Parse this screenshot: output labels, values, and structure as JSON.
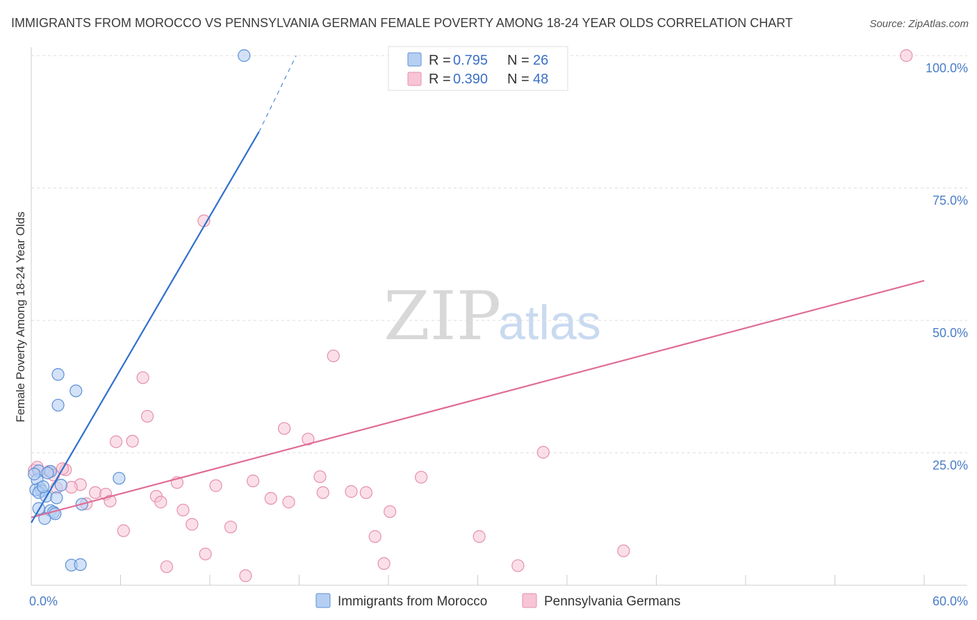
{
  "header": {
    "title": "IMMIGRANTS FROM MOROCCO VS PENNSYLVANIA GERMAN FEMALE POVERTY AMONG 18-24 YEAR OLDS CORRELATION CHART",
    "source": "Source: ZipAtlas.com"
  },
  "watermark": {
    "zip": "ZIP",
    "atlas": "atlas"
  },
  "legend": {
    "r_label": "R =",
    "n_label": "N =",
    "series": [
      {
        "r": "0.795",
        "n": "26"
      },
      {
        "r": "0.390",
        "n": "48"
      }
    ]
  },
  "colors": {
    "blue_fill": "#b5cff2",
    "blue_stroke": "#5b8fd6",
    "blue_line": "#2e6fcc",
    "pink_fill": "#f7c5d5",
    "pink_stroke": "#e58fab",
    "pink_line": "#e06b97",
    "grid": "#dddddd"
  },
  "chart_data": {
    "type": "scatter",
    "title": "IMMIGRANTS FROM MOROCCO VS PENNSYLVANIA GERMAN FEMALE POVERTY AMONG 18-24 YEAR OLDS CORRELATION CHART",
    "xlabel": "",
    "ylabel": "Female Poverty Among 18-24 Year Olds",
    "xlim": [
      0,
      60
    ],
    "ylim": [
      0,
      100
    ],
    "x_tick_labels": [
      "0.0%",
      "60.0%"
    ],
    "y_ticks": [
      25,
      50,
      75,
      100
    ],
    "y_tick_labels": [
      "25.0%",
      "50.0%",
      "75.0%",
      "100.0%"
    ],
    "series": [
      {
        "name": "Immigrants from Morocco",
        "color": "#5b8fd6",
        "R": 0.795,
        "N": 26,
        "points": [
          [
            14.3,
            100.0
          ],
          [
            1.8,
            39.8
          ],
          [
            3.0,
            36.7
          ],
          [
            1.8,
            34.0
          ],
          [
            5.9,
            20.2
          ],
          [
            1.3,
            21.5
          ],
          [
            0.5,
            21.6
          ],
          [
            0.4,
            19.9
          ],
          [
            2.0,
            18.9
          ],
          [
            0.6,
            18.3
          ],
          [
            0.7,
            17.8
          ],
          [
            0.3,
            18.0
          ],
          [
            0.5,
            17.5
          ],
          [
            1.0,
            16.8
          ],
          [
            1.7,
            16.5
          ],
          [
            3.4,
            15.3
          ],
          [
            0.5,
            14.5
          ],
          [
            1.3,
            14.1
          ],
          [
            1.5,
            13.8
          ],
          [
            1.6,
            13.5
          ],
          [
            0.9,
            12.6
          ],
          [
            2.7,
            3.8
          ],
          [
            3.3,
            3.9
          ],
          [
            0.2,
            21.0
          ],
          [
            0.8,
            18.6
          ],
          [
            1.1,
            21.2
          ]
        ],
        "trendline": {
          "x": [
            0,
            15.3
          ],
          "y": [
            11.8,
            85.6
          ]
        },
        "trendline_dashed": {
          "x": [
            15.3,
            17.8
          ],
          "y": [
            85.6,
            100.0
          ]
        }
      },
      {
        "name": "Pennsylvania Germans",
        "color": "#e58fab",
        "R": 0.39,
        "N": 48,
        "points": [
          [
            58.8,
            100.0
          ],
          [
            11.6,
            68.8
          ],
          [
            20.3,
            43.3
          ],
          [
            7.5,
            39.2
          ],
          [
            7.8,
            31.9
          ],
          [
            17.0,
            29.6
          ],
          [
            18.6,
            27.6
          ],
          [
            5.7,
            27.1
          ],
          [
            6.8,
            27.2
          ],
          [
            34.4,
            25.1
          ],
          [
            0.2,
            21.7
          ],
          [
            1.2,
            21.5
          ],
          [
            2.3,
            21.8
          ],
          [
            26.2,
            20.4
          ],
          [
            19.4,
            20.5
          ],
          [
            14.9,
            19.7
          ],
          [
            9.8,
            19.4
          ],
          [
            12.4,
            18.8
          ],
          [
            3.3,
            19.0
          ],
          [
            2.7,
            18.5
          ],
          [
            1.7,
            18.4
          ],
          [
            19.6,
            17.5
          ],
          [
            21.5,
            17.7
          ],
          [
            22.5,
            17.5
          ],
          [
            4.3,
            17.5
          ],
          [
            5.0,
            17.2
          ],
          [
            8.4,
            16.8
          ],
          [
            16.1,
            16.4
          ],
          [
            17.3,
            15.7
          ],
          [
            8.7,
            15.7
          ],
          [
            5.3,
            15.9
          ],
          [
            3.7,
            15.4
          ],
          [
            10.2,
            14.2
          ],
          [
            24.1,
            13.9
          ],
          [
            10.8,
            11.5
          ],
          [
            13.4,
            11.0
          ],
          [
            6.2,
            10.3
          ],
          [
            23.1,
            9.2
          ],
          [
            30.1,
            9.2
          ],
          [
            39.8,
            6.5
          ],
          [
            11.7,
            5.9
          ],
          [
            9.1,
            3.5
          ],
          [
            23.7,
            4.1
          ],
          [
            32.7,
            3.7
          ],
          [
            14.4,
            1.8
          ],
          [
            0.4,
            22.3
          ],
          [
            2.1,
            22.0
          ],
          [
            1.5,
            20.8
          ]
        ],
        "trendline": {
          "x": [
            0,
            60
          ],
          "y": [
            12.8,
            57.5
          ]
        }
      }
    ]
  },
  "bottom_legend": {
    "items": [
      "Immigrants from Morocco",
      "Pennsylvania Germans"
    ]
  }
}
